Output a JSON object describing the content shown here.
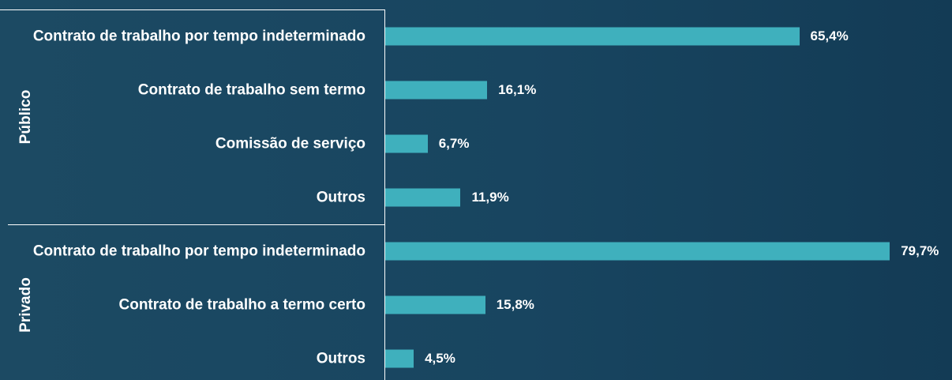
{
  "chart_data": {
    "type": "bar",
    "orientation": "horizontal",
    "color": "#3fb0bd",
    "groups": [
      {
        "name": "Público",
        "categories": [
          "Contrato de trabalho por tempo indeterminado",
          "Contrato de trabalho sem termo",
          "Comissão de serviço",
          "Outros"
        ],
        "values": [
          65.4,
          16.1,
          6.7,
          11.9
        ],
        "value_labels": [
          "65,4%",
          "16,1%",
          "6,7%",
          "11,9%"
        ]
      },
      {
        "name": "Privado",
        "categories": [
          "Contrato de trabalho por tempo indeterminado",
          "Contrato de trabalho a termo certo",
          "Outros"
        ],
        "values": [
          79.7,
          15.8,
          4.5
        ],
        "value_labels": [
          "79,7%",
          "15,8%",
          "4,5%"
        ]
      }
    ]
  }
}
